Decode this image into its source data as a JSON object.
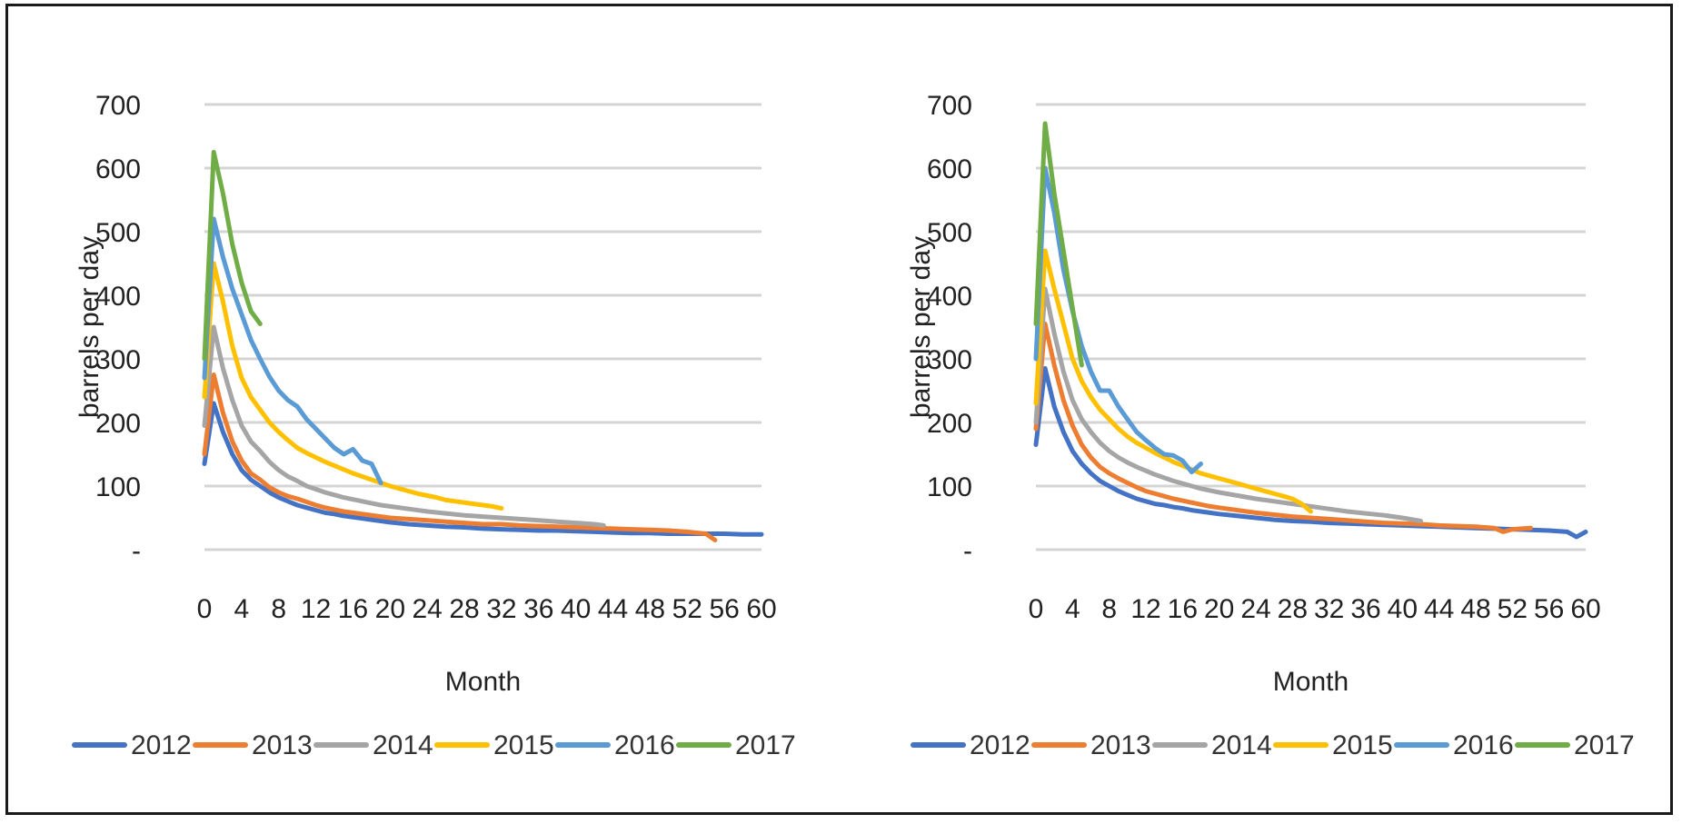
{
  "chart_data": [
    {
      "type": "line",
      "xlabel": "Month",
      "ylabel": "barrels per day",
      "ylim": [
        0,
        700
      ],
      "xlim": [
        0,
        60
      ],
      "y_ticks": [
        0,
        100,
        200,
        300,
        400,
        500,
        600,
        700
      ],
      "y_tick_labels": [
        "-",
        "100",
        "200",
        "300",
        "400",
        "500",
        "600",
        "700"
      ],
      "x_ticks": [
        "0",
        "4",
        "8",
        "12",
        "16",
        "20",
        "24",
        "28",
        "32",
        "36",
        "40",
        "44",
        "48",
        "52",
        "56",
        "60"
      ],
      "grid": true,
      "legend_position": "bottom",
      "series": [
        {
          "name": "2012",
          "color": "#4472C4",
          "x": [
            0,
            1,
            2,
            3,
            4,
            5,
            6,
            7,
            8,
            9,
            10,
            11,
            12,
            13,
            14,
            15,
            16,
            17,
            18,
            19,
            20,
            22,
            24,
            26,
            28,
            30,
            32,
            34,
            36,
            38,
            40,
            42,
            44,
            46,
            48,
            50,
            52,
            54,
            56,
            58,
            60
          ],
          "y": [
            135,
            230,
            185,
            150,
            125,
            110,
            100,
            90,
            82,
            76,
            70,
            66,
            62,
            58,
            56,
            53,
            51,
            49,
            47,
            45,
            43,
            40,
            38,
            36,
            35,
            33,
            32,
            31,
            30,
            30,
            29,
            28,
            27,
            26,
            26,
            25,
            25,
            25,
            25,
            24,
            24
          ]
        },
        {
          "name": "2013",
          "color": "#ED7D31",
          "x": [
            0,
            1,
            2,
            3,
            4,
            5,
            6,
            7,
            8,
            9,
            10,
            11,
            12,
            13,
            14,
            15,
            16,
            17,
            18,
            19,
            20,
            22,
            24,
            26,
            28,
            30,
            32,
            34,
            36,
            38,
            40,
            42,
            44,
            46,
            48,
            50,
            52,
            54,
            55
          ],
          "y": [
            150,
            275,
            215,
            170,
            140,
            120,
            110,
            98,
            90,
            84,
            80,
            75,
            70,
            66,
            63,
            60,
            58,
            56,
            54,
            52,
            50,
            48,
            46,
            44,
            42,
            40,
            40,
            38,
            37,
            36,
            35,
            34,
            33,
            32,
            31,
            30,
            28,
            25,
            15
          ]
        },
        {
          "name": "2014",
          "color": "#A5A5A5",
          "x": [
            0,
            1,
            2,
            3,
            4,
            5,
            6,
            7,
            8,
            9,
            10,
            11,
            12,
            13,
            14,
            15,
            16,
            17,
            18,
            19,
            20,
            22,
            24,
            26,
            28,
            30,
            32,
            34,
            36,
            38,
            40,
            42,
            43
          ],
          "y": [
            195,
            350,
            285,
            235,
            195,
            170,
            155,
            138,
            125,
            115,
            108,
            100,
            95,
            90,
            86,
            82,
            79,
            76,
            73,
            70,
            68,
            64,
            60,
            57,
            54,
            52,
            50,
            48,
            46,
            44,
            42,
            40,
            38
          ]
        },
        {
          "name": "2015",
          "color": "#FFC000",
          "x": [
            0,
            1,
            2,
            3,
            4,
            5,
            6,
            7,
            8,
            9,
            10,
            11,
            12,
            13,
            14,
            15,
            16,
            17,
            18,
            19,
            20,
            21,
            22,
            23,
            24,
            25,
            26,
            27,
            28,
            29,
            30,
            31,
            32
          ],
          "y": [
            240,
            450,
            390,
            320,
            270,
            240,
            220,
            200,
            185,
            172,
            160,
            152,
            145,
            138,
            132,
            126,
            120,
            115,
            110,
            105,
            100,
            96,
            92,
            88,
            85,
            82,
            78,
            76,
            74,
            72,
            70,
            68,
            65
          ]
        },
        {
          "name": "2016",
          "color": "#5B9BD5",
          "x": [
            0,
            1,
            2,
            3,
            4,
            5,
            6,
            7,
            8,
            9,
            10,
            11,
            12,
            13,
            14,
            15,
            16,
            17,
            18,
            19
          ],
          "y": [
            270,
            520,
            460,
            410,
            370,
            330,
            300,
            272,
            250,
            235,
            225,
            205,
            190,
            175,
            160,
            150,
            158,
            140,
            135,
            105
          ]
        },
        {
          "name": "2017",
          "color": "#70AD47",
          "x": [
            0,
            1,
            2,
            3,
            4,
            5,
            6
          ],
          "y": [
            300,
            625,
            560,
            480,
            420,
            375,
            355
          ]
        }
      ]
    },
    {
      "type": "line",
      "xlabel": "Month",
      "ylabel": "barrels per day",
      "ylim": [
        0,
        700
      ],
      "xlim": [
        0,
        60
      ],
      "y_ticks": [
        0,
        100,
        200,
        300,
        400,
        500,
        600,
        700
      ],
      "y_tick_labels": [
        "-",
        "100",
        "200",
        "300",
        "400",
        "500",
        "600",
        "700"
      ],
      "x_ticks": [
        "0",
        "4",
        "8",
        "12",
        "16",
        "20",
        "24",
        "28",
        "32",
        "36",
        "40",
        "44",
        "48",
        "52",
        "56",
        "60"
      ],
      "grid": true,
      "legend_position": "bottom",
      "series": [
        {
          "name": "2012",
          "color": "#4472C4",
          "x": [
            0,
            1,
            2,
            3,
            4,
            5,
            6,
            7,
            8,
            9,
            10,
            11,
            12,
            13,
            14,
            15,
            16,
            17,
            18,
            19,
            20,
            22,
            24,
            26,
            28,
            30,
            32,
            34,
            36,
            38,
            40,
            42,
            44,
            46,
            48,
            50,
            52,
            54,
            56,
            58,
            59,
            60
          ],
          "y": [
            165,
            285,
            225,
            185,
            155,
            135,
            120,
            108,
            100,
            92,
            86,
            80,
            76,
            72,
            70,
            67,
            65,
            62,
            60,
            58,
            56,
            53,
            50,
            47,
            45,
            44,
            42,
            41,
            40,
            39,
            38,
            37,
            36,
            35,
            34,
            33,
            32,
            31,
            30,
            28,
            20,
            28
          ]
        },
        {
          "name": "2013",
          "color": "#ED7D31",
          "x": [
            0,
            1,
            2,
            3,
            4,
            5,
            6,
            7,
            8,
            9,
            10,
            11,
            12,
            13,
            14,
            15,
            16,
            17,
            18,
            19,
            20,
            22,
            24,
            26,
            28,
            30,
            32,
            34,
            36,
            38,
            40,
            42,
            44,
            46,
            48,
            50,
            51,
            52,
            54
          ],
          "y": [
            190,
            355,
            290,
            235,
            195,
            165,
            145,
            130,
            120,
            112,
            105,
            98,
            92,
            88,
            84,
            80,
            77,
            74,
            71,
            68,
            66,
            62,
            58,
            55,
            52,
            50,
            48,
            46,
            44,
            42,
            41,
            40,
            38,
            37,
            36,
            34,
            28,
            32,
            34
          ]
        },
        {
          "name": "2014",
          "color": "#A5A5A5",
          "x": [
            0,
            1,
            2,
            3,
            4,
            5,
            6,
            7,
            8,
            9,
            10,
            11,
            12,
            13,
            14,
            15,
            16,
            17,
            18,
            19,
            20,
            22,
            24,
            26,
            28,
            30,
            32,
            34,
            36,
            38,
            40,
            42
          ],
          "y": [
            200,
            410,
            340,
            280,
            235,
            205,
            185,
            168,
            155,
            145,
            137,
            130,
            124,
            118,
            113,
            108,
            104,
            100,
            96,
            93,
            90,
            85,
            80,
            76,
            72,
            68,
            64,
            60,
            57,
            54,
            50,
            45
          ]
        },
        {
          "name": "2015",
          "color": "#FFC000",
          "x": [
            0,
            1,
            2,
            3,
            4,
            5,
            6,
            7,
            8,
            9,
            10,
            11,
            12,
            13,
            14,
            15,
            16,
            17,
            18,
            19,
            20,
            21,
            22,
            23,
            24,
            25,
            26,
            27,
            28,
            29,
            30
          ],
          "y": [
            230,
            470,
            410,
            355,
            300,
            265,
            240,
            220,
            205,
            190,
            178,
            168,
            160,
            152,
            145,
            138,
            132,
            126,
            120,
            116,
            112,
            108,
            104,
            100,
            96,
            92,
            88,
            84,
            80,
            72,
            60
          ]
        },
        {
          "name": "2016",
          "color": "#5B9BD5",
          "x": [
            0,
            1,
            2,
            3,
            4,
            5,
            6,
            7,
            8,
            9,
            10,
            11,
            12,
            13,
            14,
            15,
            16,
            17,
            18
          ],
          "y": [
            300,
            600,
            530,
            440,
            375,
            320,
            280,
            250,
            250,
            225,
            205,
            185,
            172,
            160,
            150,
            148,
            140,
            122,
            135
          ]
        },
        {
          "name": "2017",
          "color": "#70AD47",
          "x": [
            0,
            1,
            2,
            3,
            4,
            5
          ],
          "y": [
            355,
            670,
            560,
            470,
            380,
            290
          ]
        }
      ]
    }
  ]
}
